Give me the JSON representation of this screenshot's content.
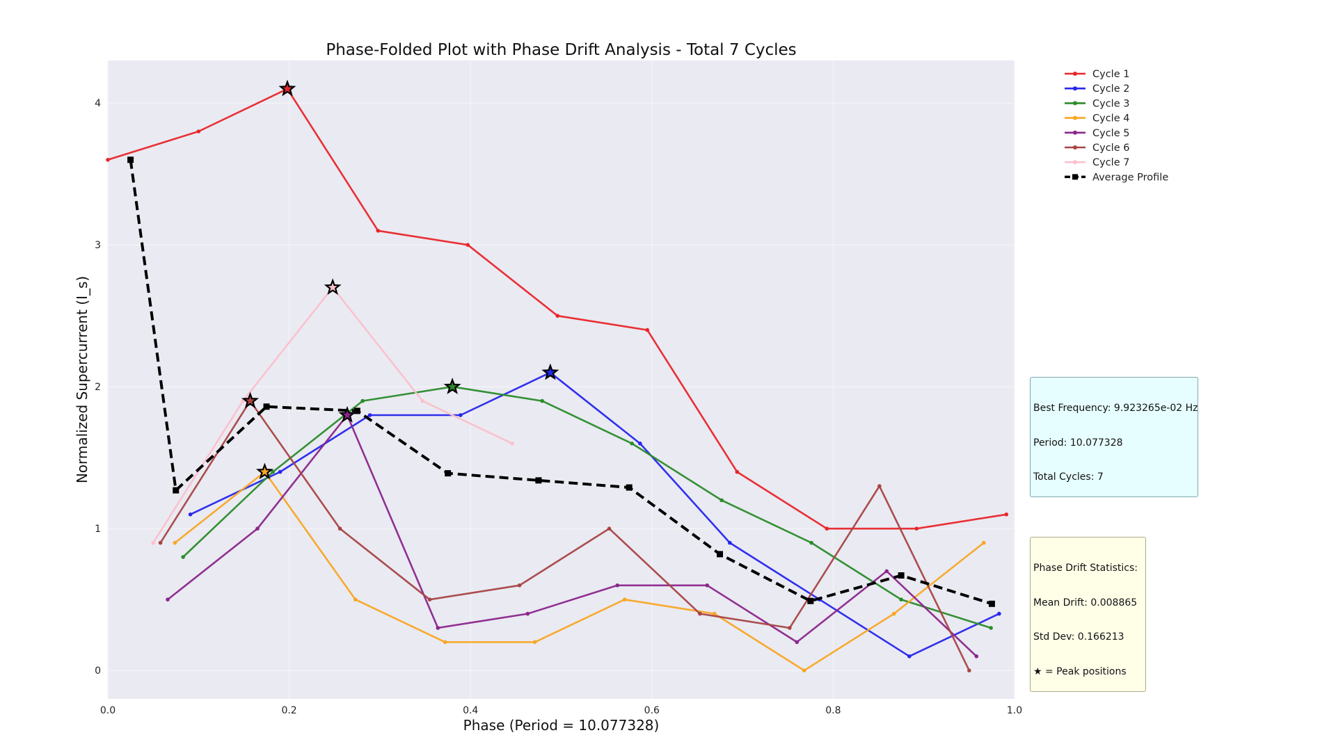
{
  "chart_data": {
    "type": "line",
    "title": "Phase-Folded Plot with Phase Drift Analysis - Total 7 Cycles",
    "xlabel": "Phase (Period = 10.077328)",
    "ylabel": "Normalized Supercurrent (I_s)",
    "xlim": [
      0.0,
      1.0
    ],
    "ylim": [
      -0.2,
      4.3
    ],
    "xticks": [
      "0.0",
      "0.2",
      "0.4",
      "0.6",
      "0.8",
      "1.0"
    ],
    "yticks": [
      "0",
      "1",
      "2",
      "3",
      "4"
    ],
    "grid": true,
    "legend_position": "outside-top-right",
    "series": [
      {
        "name": "Cycle 1",
        "color": "#e8262a",
        "x": [
          0.0,
          0.1,
          0.198,
          0.298,
          0.397,
          0.496,
          0.595,
          0.694,
          0.793,
          0.892,
          0.991
        ],
        "y": [
          3.6,
          3.8,
          4.1,
          3.1,
          3.0,
          2.5,
          2.4,
          1.4,
          1.0,
          1.0,
          1.1
        ],
        "peak": [
          0.198,
          4.1
        ]
      },
      {
        "name": "Cycle 2",
        "color": "#2626ec",
        "x": [
          0.091,
          0.19,
          0.289,
          0.389,
          0.488,
          0.587,
          0.686,
          0.785,
          0.884,
          0.983
        ],
        "y": [
          1.1,
          1.4,
          1.8,
          1.8,
          2.1,
          1.6,
          0.9,
          0.5,
          0.1,
          0.4
        ],
        "peak": [
          0.488,
          2.1
        ]
      },
      {
        "name": "Cycle 3",
        "color": "#2a8c2a",
        "x": [
          0.083,
          0.182,
          0.281,
          0.38,
          0.479,
          0.578,
          0.677,
          0.776,
          0.875,
          0.974
        ],
        "y": [
          0.8,
          1.4,
          1.9,
          2.0,
          1.9,
          1.6,
          1.2,
          0.9,
          0.5,
          0.3
        ],
        "peak": [
          0.38,
          2.0
        ]
      },
      {
        "name": "Cycle 4",
        "color": "#f8a624",
        "x": [
          0.074,
          0.173,
          0.273,
          0.372,
          0.471,
          0.57,
          0.669,
          0.768,
          0.867,
          0.966
        ],
        "y": [
          0.9,
          1.4,
          0.5,
          0.2,
          0.2,
          0.5,
          0.4,
          0.0,
          0.4,
          0.9
        ],
        "peak": [
          0.173,
          1.4
        ]
      },
      {
        "name": "Cycle 5",
        "color": "#8a268c",
        "x": [
          0.066,
          0.165,
          0.264,
          0.364,
          0.463,
          0.562,
          0.661,
          0.76,
          0.859,
          0.958
        ],
        "y": [
          0.5,
          1.0,
          1.8,
          0.3,
          0.4,
          0.6,
          0.6,
          0.2,
          0.7,
          0.1
        ],
        "peak": [
          0.264,
          1.8
        ]
      },
      {
        "name": "Cycle 6",
        "color": "#a84444",
        "x": [
          0.058,
          0.157,
          0.256,
          0.355,
          0.454,
          0.553,
          0.653,
          0.752,
          0.851,
          0.95
        ],
        "y": [
          0.9,
          1.9,
          1.0,
          0.5,
          0.6,
          1.0,
          0.4,
          0.3,
          1.3,
          0.0
        ],
        "peak": [
          0.157,
          1.9
        ]
      },
      {
        "name": "Cycle 7",
        "color": "#fbc0cb",
        "x": [
          0.05,
          0.149,
          0.248,
          0.347,
          0.446
        ],
        "y": [
          0.9,
          1.9,
          2.7,
          1.9,
          1.6
        ],
        "peak": [
          0.248,
          2.7
        ]
      },
      {
        "name": "Average Profile",
        "color": "#000000",
        "dashed": true,
        "x": [
          0.025,
          0.075,
          0.175,
          0.275,
          0.375,
          0.475,
          0.575,
          0.675,
          0.775,
          0.875,
          0.975
        ],
        "y": [
          3.6,
          1.27,
          1.86,
          1.83,
          1.39,
          1.34,
          1.29,
          0.82,
          0.49,
          0.67,
          0.47
        ]
      }
    ]
  },
  "annotations": {
    "frequency_box": {
      "line1": "Best Frequency: 9.923265e-02 Hz",
      "line2": "Period: 10.077328",
      "line3": "Total Cycles: 7",
      "background": "#e6feff"
    },
    "drift_box": {
      "line1": "Phase Drift Statistics:",
      "line2": "Mean Drift: 0.008865",
      "line3": "Std Dev: 0.166213",
      "line4": "★ = Peak positions",
      "background": "#ffffe8"
    }
  }
}
